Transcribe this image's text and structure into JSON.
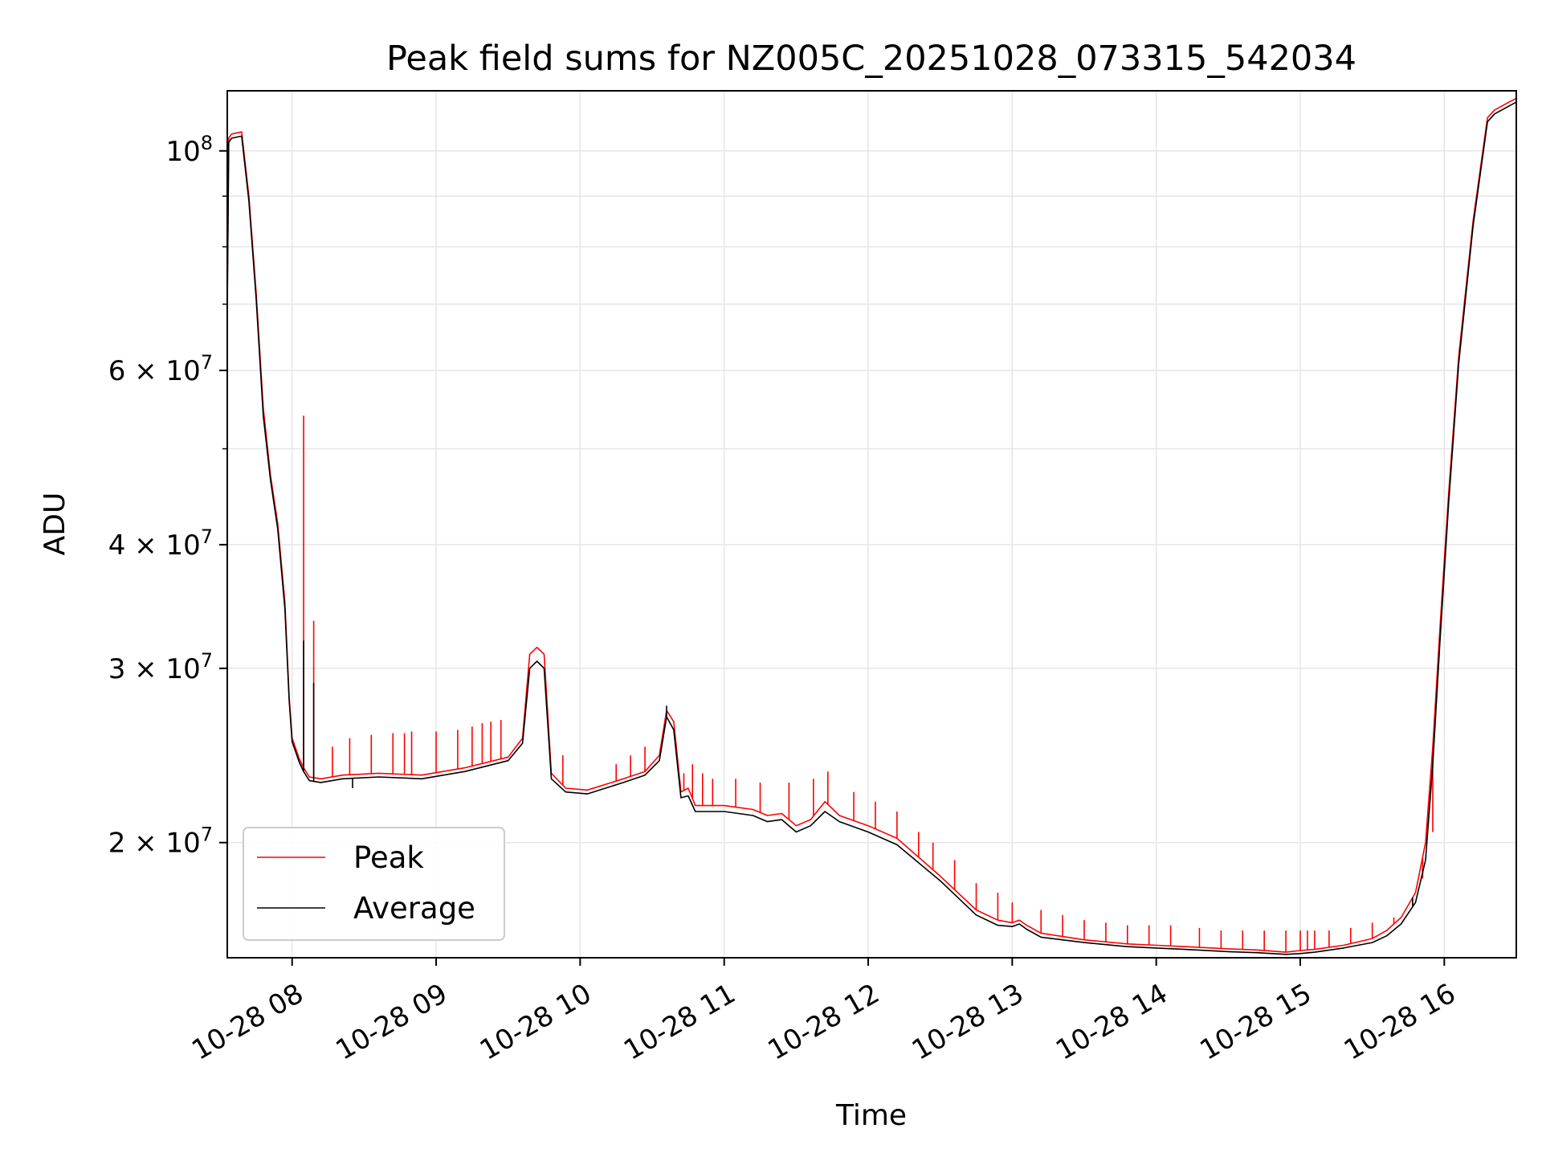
{
  "chart_data": {
    "type": "line",
    "title": "Peak field sums for NZ005C_20251028_073315_542034",
    "xlabel": "Time",
    "ylabel": "ADU",
    "yscale": "log",
    "grid": true,
    "legend_position": "lower-left",
    "xlim": [
      7.55,
      16.5
    ],
    "ylim": [
      15300000,
      115000000
    ],
    "x_unit": "hours since 2025-10-28 00:00",
    "x_ticks": [
      {
        "value": 8,
        "label": "10-28 08"
      },
      {
        "value": 9,
        "label": "10-28 09"
      },
      {
        "value": 10,
        "label": "10-28 10"
      },
      {
        "value": 11,
        "label": "10-28 11"
      },
      {
        "value": 12,
        "label": "10-28 12"
      },
      {
        "value": 13,
        "label": "10-28 13"
      },
      {
        "value": 14,
        "label": "10-28 14"
      },
      {
        "value": 15,
        "label": "10-28 15"
      },
      {
        "value": 16,
        "label": "10-28 16"
      }
    ],
    "y_ticks": [
      {
        "value": 20000000,
        "base": "2 × 10",
        "exp": "7"
      },
      {
        "value": 30000000,
        "base": "3 × 10",
        "exp": "7"
      },
      {
        "value": 40000000,
        "base": "4 × 10",
        "exp": "7"
      },
      {
        "value": 60000000,
        "base": "6 × 10",
        "exp": "7"
      },
      {
        "value": 100000000,
        "base": "10",
        "exp": "8"
      }
    ],
    "y_minor_ticks": [
      50000000,
      70000000,
      80000000,
      90000000
    ],
    "series": [
      {
        "name": "Peak",
        "color": "#ff0000",
        "x": [
          7.55,
          7.56,
          7.58,
          7.65,
          7.7,
          7.75,
          7.8,
          7.85,
          7.9,
          7.95,
          7.98,
          8.0,
          8.05,
          8.08,
          8.12,
          8.2,
          8.35,
          8.6,
          8.9,
          9.2,
          9.5,
          9.6,
          9.65,
          9.7,
          9.75,
          9.8,
          9.9,
          10.05,
          10.3,
          10.45,
          10.55,
          10.6,
          10.65,
          10.7,
          10.75,
          10.8,
          11.0,
          11.2,
          11.3,
          11.4,
          11.5,
          11.6,
          11.7,
          11.8,
          12.0,
          12.2,
          12.5,
          12.75,
          12.9,
          13.0,
          13.05,
          13.1,
          13.2,
          13.5,
          13.8,
          14.0,
          14.2,
          14.5,
          14.7,
          14.9,
          15.0,
          15.1,
          15.3,
          15.5,
          15.6,
          15.7,
          15.8,
          15.87,
          15.92,
          15.97,
          16.03,
          16.1,
          16.2,
          16.3,
          16.35,
          16.4,
          16.45,
          16.5
        ],
        "y": [
          70000000,
          103000000,
          104000000,
          104500000,
          90000000,
          72000000,
          55000000,
          47000000,
          42000000,
          35000000,
          28000000,
          25500000,
          24300000,
          23800000,
          23300000,
          23200000,
          23400000,
          23500000,
          23400000,
          23800000,
          24400000,
          25500000,
          31000000,
          31500000,
          31000000,
          23500000,
          22700000,
          22600000,
          23200000,
          23600000,
          24500000,
          27200000,
          26500000,
          22500000,
          22700000,
          21800000,
          21800000,
          21600000,
          21300000,
          21400000,
          20800000,
          21100000,
          22000000,
          21300000,
          20800000,
          20200000,
          18500000,
          17100000,
          16700000,
          16600000,
          16700000,
          16500000,
          16200000,
          15950000,
          15800000,
          15750000,
          15700000,
          15620000,
          15580000,
          15500000,
          15560000,
          15600000,
          15750000,
          16000000,
          16300000,
          16800000,
          17800000,
          20000000,
          25000000,
          33000000,
          45000000,
          62000000,
          85000000,
          108000000,
          110000000,
          111000000,
          112000000,
          113000000
        ],
        "spike_x": [
          8.08,
          8.15,
          8.28,
          8.4,
          8.55,
          8.7,
          8.78,
          8.83,
          9.0,
          9.15,
          9.25,
          9.32,
          9.38,
          9.45,
          9.88,
          10.25,
          10.35,
          10.45,
          10.72,
          10.78,
          10.85,
          10.92,
          11.08,
          11.25,
          11.45,
          11.62,
          11.72,
          11.9,
          12.05,
          12.2,
          12.35,
          12.45,
          12.6,
          12.75,
          12.9,
          13.0,
          13.2,
          13.35,
          13.5,
          13.65,
          13.8,
          13.95,
          14.1,
          14.3,
          14.45,
          14.6,
          14.75,
          14.9,
          15.0,
          15.05,
          15.1,
          15.2,
          15.35,
          15.5,
          15.65,
          15.78,
          15.85,
          15.92
        ],
        "spike_y": [
          54000000,
          33500000,
          25000000,
          25500000,
          25700000,
          25800000,
          25800000,
          25900000,
          25900000,
          26000000,
          26200000,
          26400000,
          26500000,
          26600000,
          24500000,
          24000000,
          24500000,
          25000000,
          23500000,
          24000000,
          23500000,
          23200000,
          23200000,
          23000000,
          23000000,
          23200000,
          23600000,
          22500000,
          22000000,
          21500000,
          20500000,
          20000000,
          19200000,
          18200000,
          17800000,
          17400000,
          17100000,
          16900000,
          16700000,
          16600000,
          16500000,
          16500000,
          16500000,
          16400000,
          16300000,
          16300000,
          16300000,
          16300000,
          16300000,
          16300000,
          16300000,
          16300000,
          16400000,
          16600000,
          16800000,
          17200000,
          18400000,
          20500000
        ]
      },
      {
        "name": "Average",
        "color": "#000000",
        "x": [
          7.55,
          7.56,
          7.58,
          7.65,
          7.7,
          7.75,
          7.8,
          7.85,
          7.9,
          7.95,
          7.98,
          8.0,
          8.05,
          8.08,
          8.12,
          8.2,
          8.35,
          8.6,
          8.9,
          9.2,
          9.5,
          9.6,
          9.65,
          9.7,
          9.75,
          9.8,
          9.9,
          10.05,
          10.3,
          10.45,
          10.55,
          10.6,
          10.65,
          10.7,
          10.75,
          10.8,
          11.0,
          11.2,
          11.3,
          11.4,
          11.5,
          11.6,
          11.7,
          11.8,
          12.0,
          12.2,
          12.5,
          12.75,
          12.9,
          13.0,
          13.05,
          13.1,
          13.2,
          13.5,
          13.8,
          14.0,
          14.2,
          14.5,
          14.7,
          14.9,
          15.0,
          15.1,
          15.3,
          15.5,
          15.6,
          15.7,
          15.8,
          15.87,
          15.92,
          15.97,
          16.03,
          16.1,
          16.2,
          16.3,
          16.35,
          16.4,
          16.45,
          16.5
        ],
        "y": [
          69000000,
          102000000,
          103000000,
          103500000,
          89000000,
          71000000,
          54000000,
          46500000,
          41500000,
          34500000,
          27800000,
          25300000,
          24100000,
          23600000,
          23100000,
          23000000,
          23200000,
          23300000,
          23200000,
          23600000,
          24200000,
          25200000,
          30000000,
          30500000,
          30000000,
          23200000,
          22500000,
          22400000,
          23000000,
          23400000,
          24200000,
          26800000,
          26000000,
          22200000,
          22300000,
          21500000,
          21500000,
          21300000,
          21000000,
          21100000,
          20500000,
          20800000,
          21500000,
          21000000,
          20500000,
          19900000,
          18300000,
          16900000,
          16500000,
          16450000,
          16550000,
          16350000,
          16050000,
          15850000,
          15700000,
          15650000,
          15600000,
          15520000,
          15480000,
          15420000,
          15450000,
          15500000,
          15650000,
          15850000,
          16100000,
          16550000,
          17400000,
          19200000,
          24000000,
          32000000,
          44000000,
          61000000,
          84000000,
          107000000,
          109000000,
          110000000,
          111000000,
          112000000
        ],
        "spike_x": [
          8.08,
          8.15,
          8.42,
          10.6,
          15.78,
          15.85
        ],
        "spike_y": [
          32000000,
          29000000,
          22700000,
          27500000,
          17600000,
          18800000
        ]
      }
    ]
  }
}
